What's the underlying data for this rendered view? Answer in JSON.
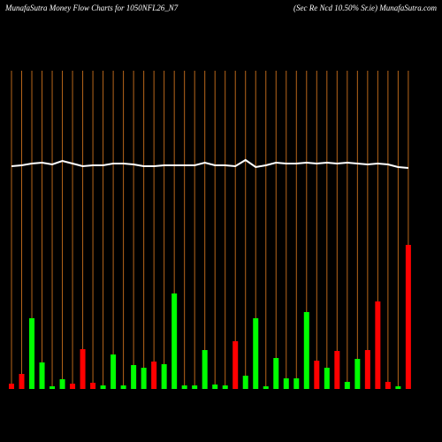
{
  "chart_data": {
    "type": "bar",
    "title": "MunafaSutra  Money Flow  Charts for 1050NFL26_N7",
    "subtitle": "(Sec Re   Ncd 10.50% Sr.ie) MunafaSutra.com",
    "categories": [
      null,
      null,
      null,
      null,
      null,
      null,
      null,
      null,
      null,
      null,
      null,
      null,
      null,
      null,
      null,
      null,
      null,
      null,
      null,
      null,
      null,
      null,
      null,
      null,
      null,
      null,
      null,
      null,
      null,
      null,
      null,
      null,
      null,
      null,
      null,
      null,
      null,
      null,
      null,
      null
    ],
    "values": [
      6,
      17,
      80,
      30,
      3,
      11,
      6,
      45,
      7,
      4,
      39,
      4,
      27,
      24,
      31,
      28,
      108,
      4,
      4,
      44,
      5,
      4,
      54,
      15,
      80,
      3,
      35,
      12,
      12,
      87,
      32,
      24,
      43,
      8,
      34,
      44,
      99,
      8,
      3,
      163
    ],
    "colors": [
      "#ff0000",
      "#ff0000",
      "#00ff00",
      "#00ff00",
      "#00ff00",
      "#00ff00",
      "#ff0000",
      "#ff0000",
      "#ff0000",
      "#00ff00",
      "#00ff00",
      "#00ff00",
      "#00ff00",
      "#00ff00",
      "#ff0000",
      "#00ff00",
      "#00ff00",
      "#00ff00",
      "#00ff00",
      "#00ff00",
      "#00ff00",
      "#00ff00",
      "#ff0000",
      "#00ff00",
      "#00ff00",
      "#00ff00",
      "#00ff00",
      "#00ff00",
      "#00ff00",
      "#00ff00",
      "#ff0000",
      "#00ff00",
      "#ff0000",
      "#00ff00",
      "#00ff00",
      "#ff0000",
      "#ff0000",
      "#ff0000",
      "#00ff00",
      "#ff0000"
    ],
    "line": {
      "color": "#ffffff",
      "values": [
        252,
        253,
        255,
        256,
        254,
        258,
        255,
        252,
        253,
        253,
        255,
        255,
        254,
        252,
        252,
        253,
        253,
        253,
        253,
        256,
        253,
        253,
        252,
        259,
        251,
        253,
        256,
        255,
        255,
        256,
        255,
        256,
        255,
        256,
        255,
        254,
        255,
        254,
        251,
        250
      ]
    },
    "grid_color": "#b8661a",
    "ylim": [
      0,
      360
    ]
  }
}
